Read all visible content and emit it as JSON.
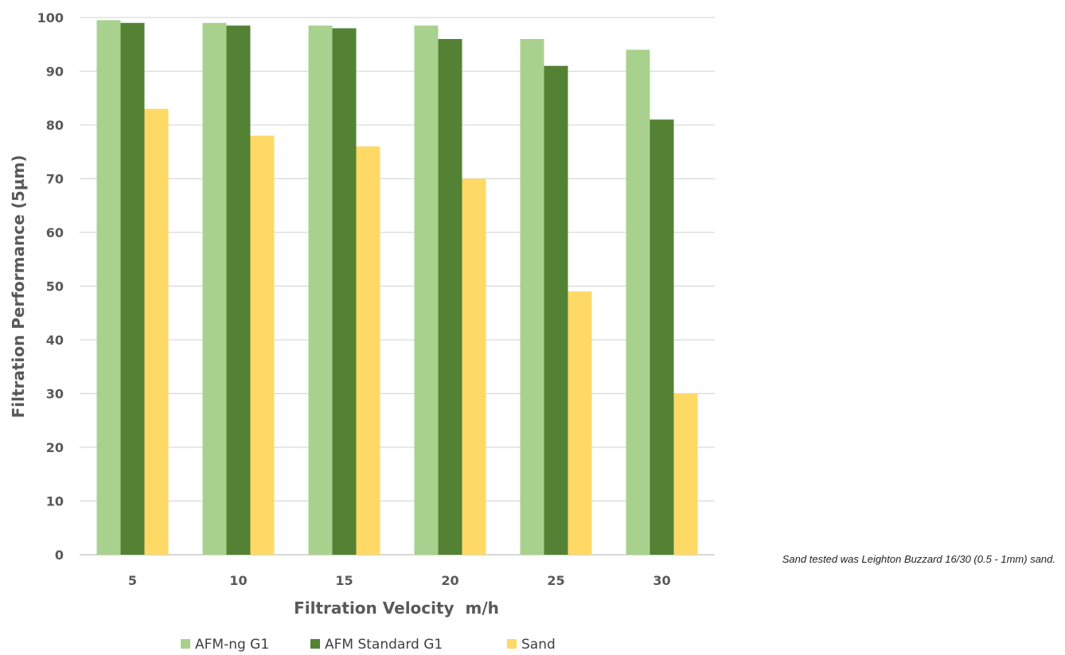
{
  "chart_data": {
    "type": "bar",
    "categories": [
      "5",
      "10",
      "15",
      "20",
      "25",
      "30"
    ],
    "series": [
      {
        "name": "AFM-ng G1",
        "color": "#a9d18e",
        "values": [
          99.5,
          99,
          98.5,
          98.5,
          96,
          94
        ]
      },
      {
        "name": "AFM Standard G1",
        "color": "#548235",
        "values": [
          99,
          98.5,
          98,
          96,
          91,
          81
        ]
      },
      {
        "name": "Sand",
        "color": "#ffd966",
        "values": [
          83,
          78,
          76,
          70,
          49,
          30
        ]
      }
    ],
    "xlabel": "Filtration Velocity  m/h",
    "ylabel": "Filtration Performance (5µm)",
    "ylim": [
      0,
      100
    ],
    "yticks": [
      "0",
      "10",
      "20",
      "30",
      "40",
      "50",
      "60",
      "70",
      "80",
      "90",
      "100"
    ],
    "grid": true,
    "legend_position": "bottom",
    "annotation": "Sand tested was Leighton Buzzard 16/30 (0.5 - 1mm) sand."
  }
}
